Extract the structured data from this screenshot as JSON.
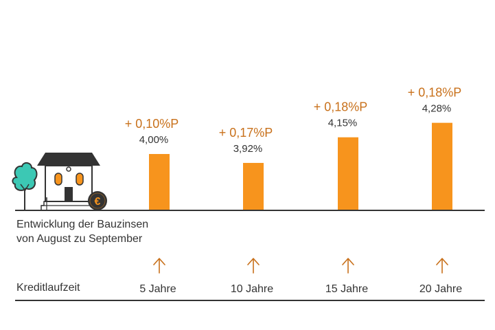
{
  "colors": {
    "bar": "#f7941d",
    "change": "#c8701a",
    "text": "#333333",
    "axis": "#333333",
    "arrow": "#c8701a",
    "tree": "#3cc8b4"
  },
  "illustration": {
    "house_icon": "house-icon",
    "tree_icon": "tree-icon",
    "euro_coin_icon": "euro-coin-icon",
    "euro_symbol": "€"
  },
  "caption": {
    "line1": "Entwicklung der Bauzinsen",
    "line2": "von August zu September"
  },
  "row_label": "Kreditlaufzeit",
  "arrow_icon": "arrow-up-icon",
  "chart_data": {
    "type": "bar",
    "categories": [
      "5 Jahre",
      "10 Jahre",
      "15 Jahre",
      "20 Jahre"
    ],
    "values": [
      4.0,
      3.92,
      4.15,
      4.28
    ],
    "value_labels": [
      "4,00%",
      "3,92%",
      "4,15%",
      "4,28%"
    ],
    "changes": [
      0.1,
      0.17,
      0.18,
      0.18
    ],
    "change_labels": [
      "+ 0,10%P",
      "+ 0,17%P",
      "+ 0,18%P",
      "+ 0,18%P"
    ],
    "xlabel": "Kreditlaufzeit",
    "ylabel": "",
    "grid": false,
    "legend": "none"
  }
}
